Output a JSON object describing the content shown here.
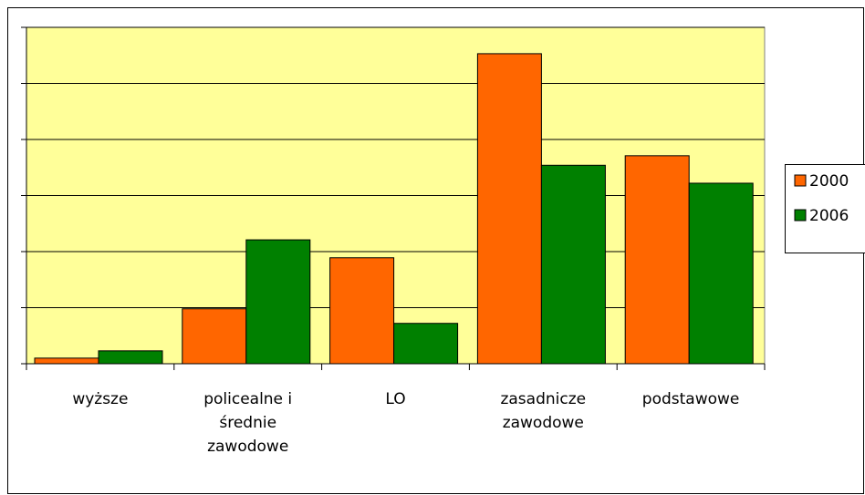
{
  "chart_data": {
    "type": "bar",
    "categories": [
      "wyższe",
      "policealne i średnie zawodowe",
      "LO",
      "zasadnicze zawodowe",
      "podstawowe"
    ],
    "series": [
      {
        "name": "2000",
        "color": "#ff6600",
        "values": [
          0.1,
          0.98,
          1.89,
          5.53,
          3.71
        ]
      },
      {
        "name": "2006",
        "color": "#008000",
        "values": [
          0.23,
          2.21,
          0.72,
          3.54,
          3.22
        ]
      }
    ],
    "ylim": [
      0,
      6
    ],
    "yticks": [
      0,
      1,
      2,
      3,
      4,
      5,
      6
    ],
    "grid": true,
    "legend": "right",
    "plot_background": "#ffff99"
  }
}
